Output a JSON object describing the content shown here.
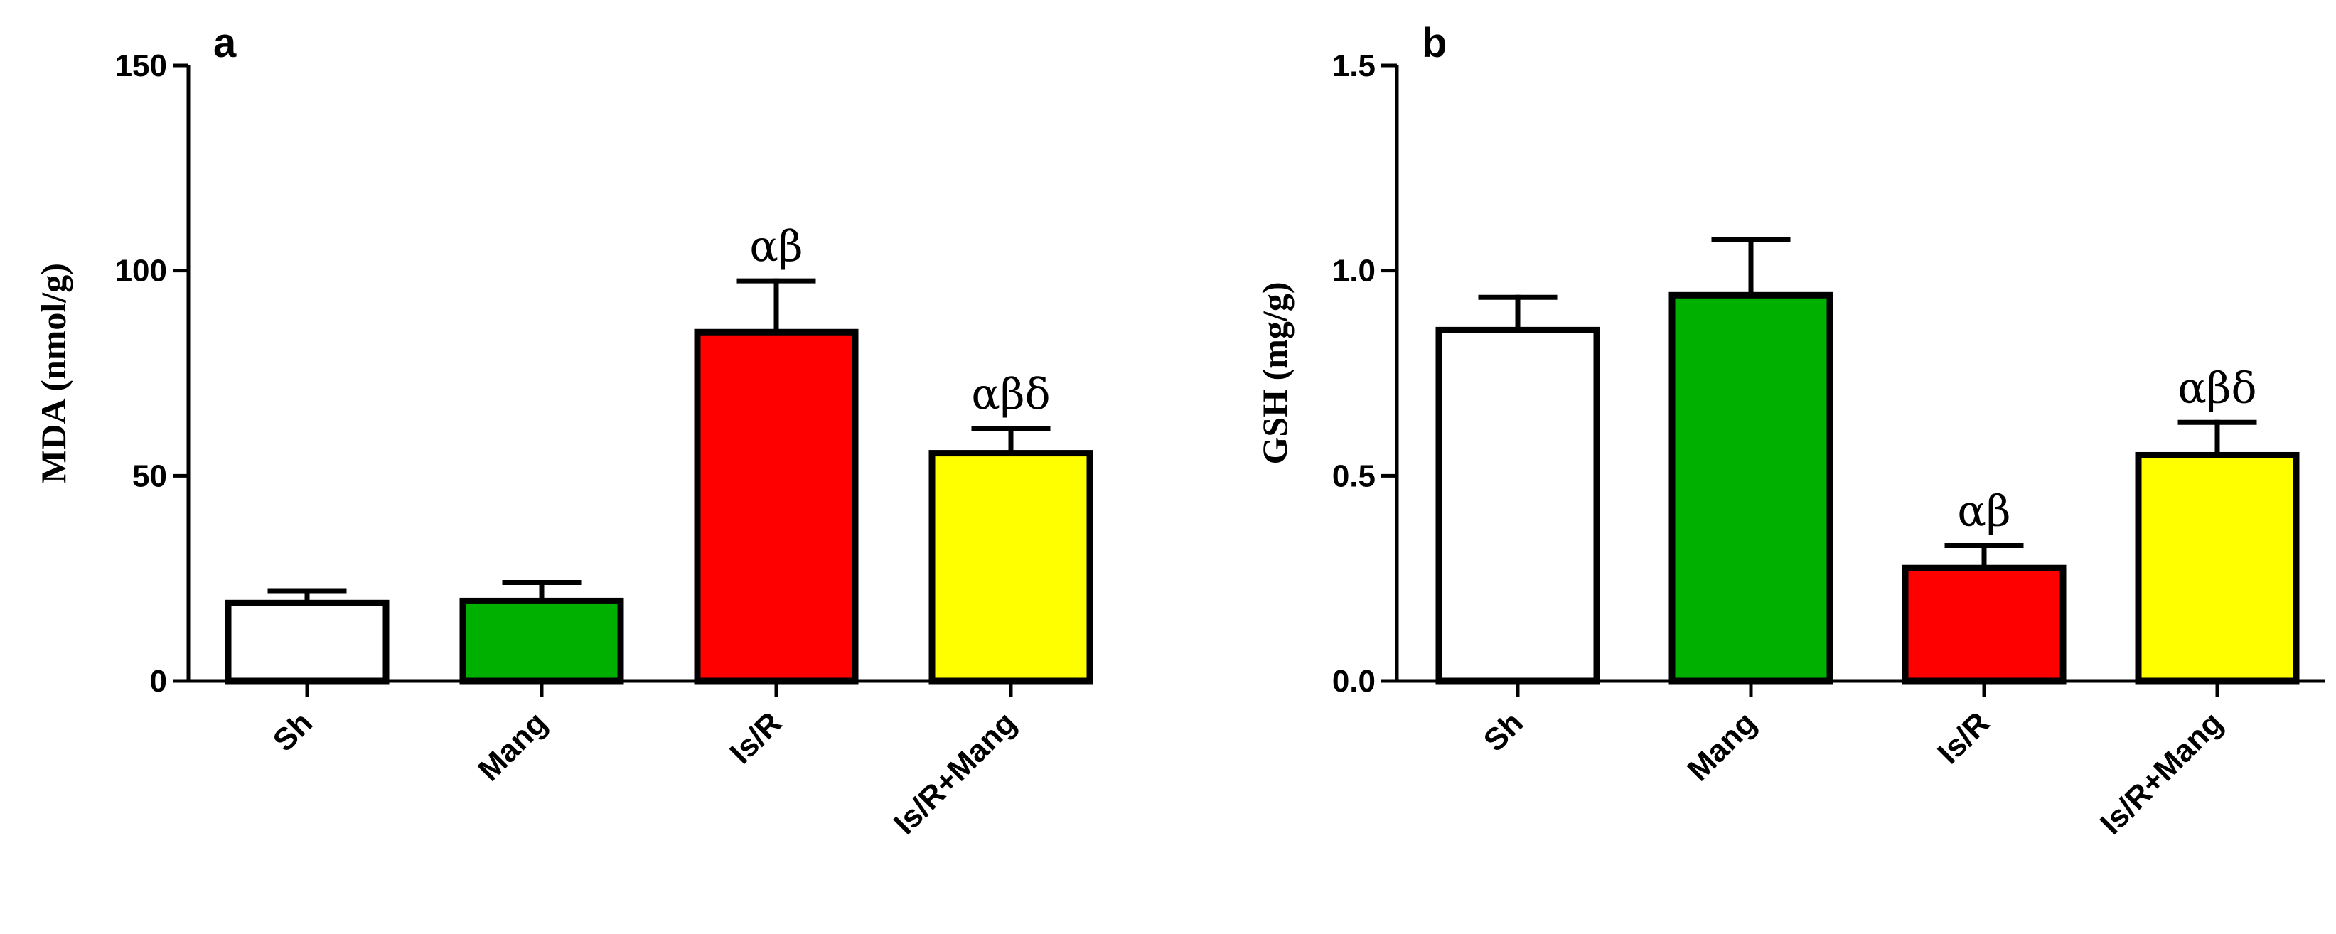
{
  "chart_data": [
    {
      "panel": "a",
      "type": "bar",
      "ylabel": "MDA (nmol/g)",
      "ylim": [
        0,
        150
      ],
      "yticks": [
        "0",
        "50",
        "100",
        "150"
      ],
      "categories": [
        "Sh",
        "Mang",
        "Is/R",
        "Is/R+Mang"
      ],
      "values": [
        19,
        19.5,
        85,
        55.5
      ],
      "errors": [
        3,
        4.5,
        12.5,
        6
      ],
      "colors": [
        "#ffffff",
        "#00b000",
        "#ff0000",
        "#ffff00"
      ],
      "annotations": [
        "",
        "",
        "αβ",
        "αβδ"
      ]
    },
    {
      "panel": "b",
      "type": "bar",
      "ylabel": "GSH (mg/g)",
      "ylim": [
        0,
        1.5
      ],
      "yticks": [
        "0.0",
        "0.5",
        "1.0",
        "1.5"
      ],
      "categories": [
        "Sh",
        "Mang",
        "Is/R",
        "Is/R+Mang"
      ],
      "values": [
        0.855,
        0.94,
        0.275,
        0.55
      ],
      "errors": [
        0.08,
        0.135,
        0.055,
        0.08
      ],
      "colors": [
        "#ffffff",
        "#00b000",
        "#ff0000",
        "#ffff00"
      ],
      "annotations": [
        "",
        "",
        "αβ",
        "αβδ"
      ]
    }
  ]
}
